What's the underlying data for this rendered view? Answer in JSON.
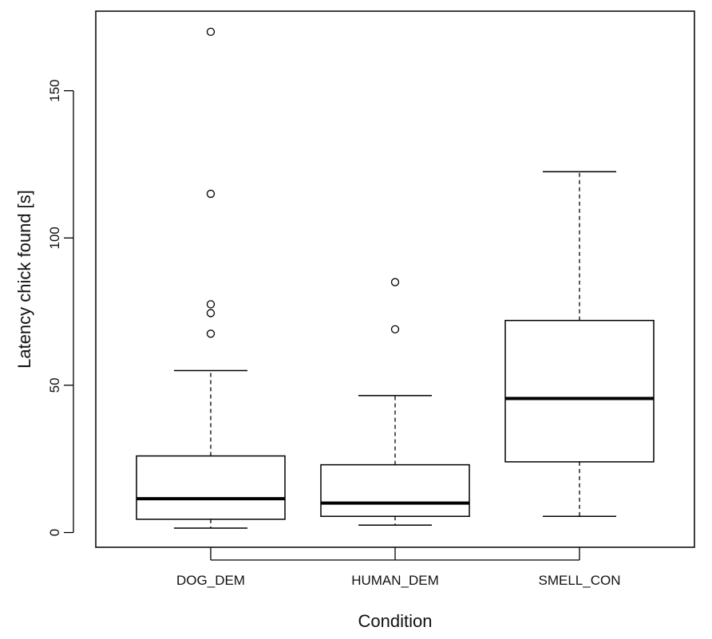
{
  "chart_data": {
    "type": "box",
    "title": "",
    "xlabel": "Condition",
    "ylabel": "Latency chick found [s]",
    "ylim": [
      -5,
      177
    ],
    "y_ticks": [
      0,
      50,
      100,
      150
    ],
    "y_tick_labels": [
      "0",
      "50",
      "100",
      "150"
    ],
    "grid": false,
    "categories": [
      "DOG_DEM",
      "HUMAN_DEM",
      "SMELL_CON"
    ],
    "boxes": [
      {
        "category": "DOG_DEM",
        "whisker_low": 1.5,
        "q1": 4.5,
        "median": 11.5,
        "q3": 26,
        "whisker_high": 55,
        "outliers": [
          67.5,
          74.5,
          77.5,
          115,
          170
        ]
      },
      {
        "category": "HUMAN_DEM",
        "whisker_low": 2.5,
        "q1": 5.5,
        "median": 10,
        "q3": 23,
        "whisker_high": 46.5,
        "outliers": [
          69,
          85
        ]
      },
      {
        "category": "SMELL_CON",
        "whisker_low": 5.5,
        "q1": 24,
        "median": 45.5,
        "q3": 72,
        "whisker_high": 122.5,
        "outliers": []
      }
    ]
  }
}
